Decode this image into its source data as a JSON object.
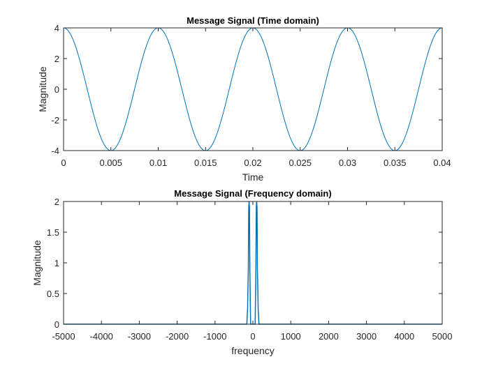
{
  "chart_data": [
    {
      "type": "line",
      "title": "Message Signal (Time domain)",
      "xlabel": "Time",
      "ylabel": "Magnitude",
      "xlim": [
        0,
        0.04
      ],
      "ylim": [
        -4,
        4
      ],
      "xticks": [
        "0",
        "0.005",
        "0.01",
        "0.015",
        "0.02",
        "0.025",
        "0.03",
        "0.035",
        "0.04"
      ],
      "yticks": [
        "-4",
        "-2",
        "0",
        "2",
        "4"
      ],
      "series": [
        {
          "function": "4*cos(2*pi*100*t)",
          "amplitude": 4,
          "frequency_hz": 100,
          "x_start": 0,
          "x_end": 0.04
        }
      ],
      "color": "#0072bd",
      "grid": false
    },
    {
      "type": "line",
      "title": "Message Signal (Frequency domain)",
      "xlabel": "frequency",
      "ylabel": "Magnitude",
      "xlim": [
        -5000,
        5000
      ],
      "ylim": [
        0,
        2
      ],
      "xticks": [
        "-5000",
        "-4000",
        "-3000",
        "-2000",
        "-1000",
        "0",
        "1000",
        "2000",
        "3000",
        "4000",
        "5000"
      ],
      "yticks": [
        "0",
        "0.5",
        "1",
        "1.5",
        "2"
      ],
      "series": [
        {
          "x": [
            -5000,
            -160,
            -140,
            -120,
            -110,
            -100,
            -90,
            -80,
            -60,
            60,
            80,
            90,
            100,
            110,
            120,
            140,
            160,
            5000
          ],
          "y": [
            0,
            0,
            0.25,
            0.9,
            1.9,
            2,
            1.9,
            0.9,
            0,
            0,
            0.9,
            1.9,
            2,
            1.9,
            0.9,
            0.25,
            0,
            0
          ]
        }
      ],
      "color": "#0072bd",
      "grid": false
    }
  ]
}
